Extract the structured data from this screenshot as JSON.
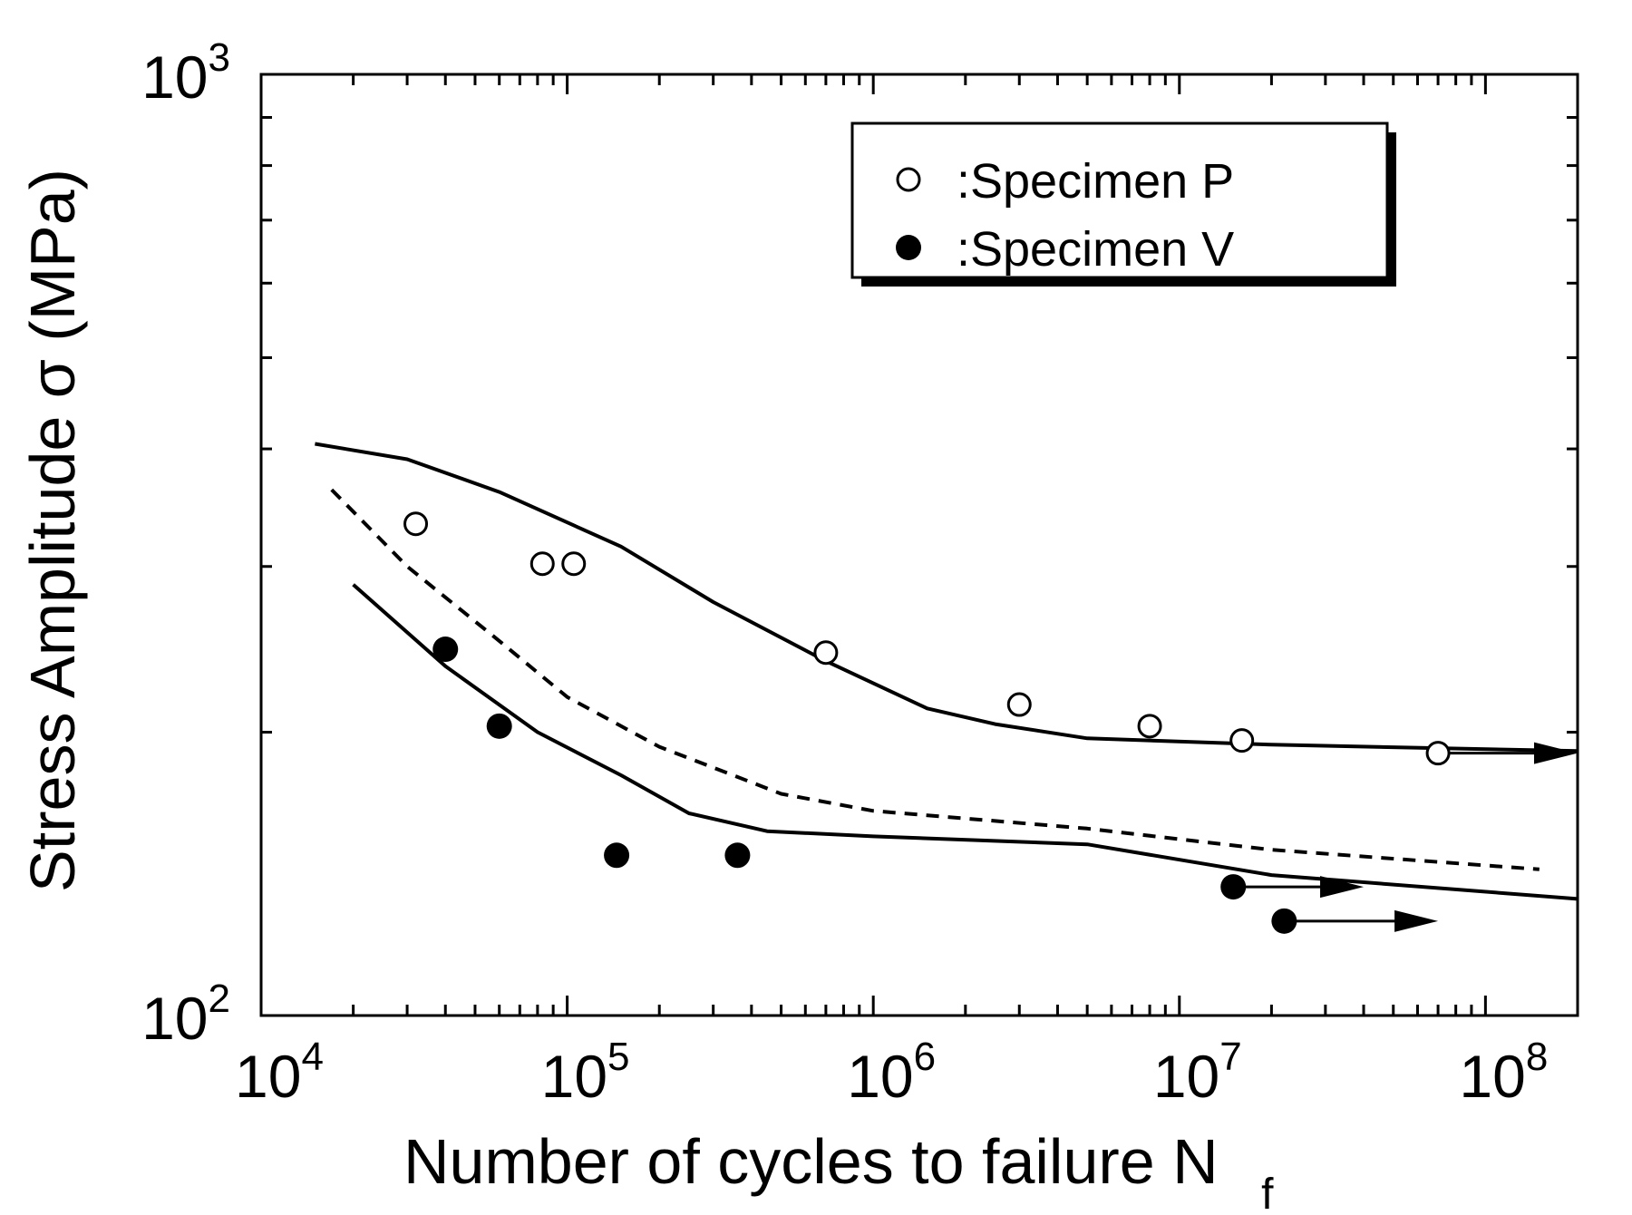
{
  "chart_data": {
    "type": "scatter",
    "title": "",
    "xlabel": "Number of cycles to failure N",
    "xlabel_subscript": "f",
    "ylabel": "Stress Amplitude σ (MPa)",
    "xscale": "log",
    "yscale": "log",
    "xlim": [
      10000,
      200000000
    ],
    "ylim": [
      100,
      1000
    ],
    "x_ticks": [
      {
        "base": "10",
        "exp": "4",
        "value": 10000
      },
      {
        "base": "10",
        "exp": "5",
        "value": 100000
      },
      {
        "base": "10",
        "exp": "6",
        "value": 1000000
      },
      {
        "base": "10",
        "exp": "7",
        "value": 10000000
      },
      {
        "base": "10",
        "exp": "8",
        "value": 100000000
      }
    ],
    "y_ticks": [
      {
        "base": "10",
        "exp": "2",
        "value": 100
      },
      {
        "base": "10",
        "exp": "3",
        "value": 1000
      }
    ],
    "legend": {
      "position": "top-right",
      "entries": [
        {
          "label": ":Specimen P",
          "marker": "open-circle"
        },
        {
          "label": ":Specimen V",
          "marker": "filled-circle"
        }
      ]
    },
    "series": [
      {
        "name": "Specimen P",
        "marker": "open-circle",
        "points": [
          {
            "x": 32000,
            "y": 333
          },
          {
            "x": 83000,
            "y": 302
          },
          {
            "x": 105000,
            "y": 302
          },
          {
            "x": 700000,
            "y": 243
          },
          {
            "x": 3000000,
            "y": 214
          },
          {
            "x": 8000000,
            "y": 203
          },
          {
            "x": 16000000,
            "y": 196
          },
          {
            "x": 70000000,
            "y": 190,
            "runout": true
          }
        ]
      },
      {
        "name": "Specimen V",
        "marker": "filled-circle",
        "points": [
          {
            "x": 40000,
            "y": 245
          },
          {
            "x": 60000,
            "y": 203
          },
          {
            "x": 145000,
            "y": 148
          },
          {
            "x": 360000,
            "y": 148
          },
          {
            "x": 15000000,
            "y": 137,
            "runout": true
          },
          {
            "x": 22000000,
            "y": 126,
            "runout": true
          }
        ]
      }
    ],
    "curves": [
      {
        "name": "fit-specimen-P",
        "style": "solid",
        "points": [
          [
            15000,
            405
          ],
          [
            30000,
            390
          ],
          [
            60000,
            360
          ],
          [
            150000,
            315
          ],
          [
            300000,
            275
          ],
          [
            700000,
            238
          ],
          [
            1500000,
            212
          ],
          [
            2500000,
            204
          ],
          [
            5000000,
            197
          ],
          [
            20000000,
            194
          ],
          [
            200000000,
            191
          ]
        ]
      },
      {
        "name": "fit-specimen-V",
        "style": "solid",
        "points": [
          [
            20000,
            287
          ],
          [
            40000,
            235
          ],
          [
            80000,
            200
          ],
          [
            150000,
            180
          ],
          [
            250000,
            164
          ],
          [
            450000,
            157
          ],
          [
            1000000,
            155
          ],
          [
            5000000,
            152
          ],
          [
            20000000,
            141
          ],
          [
            200000000,
            133
          ]
        ]
      },
      {
        "name": "fit-dashed",
        "style": "dashed",
        "points": [
          [
            17000,
            362
          ],
          [
            30000,
            300
          ],
          [
            60000,
            250
          ],
          [
            100000,
            218
          ],
          [
            200000,
            193
          ],
          [
            500000,
            172
          ],
          [
            1000000,
            165
          ],
          [
            5000000,
            158
          ],
          [
            20000000,
            150
          ],
          [
            150000000,
            143
          ]
        ]
      }
    ],
    "runout_arrows": [
      {
        "x_from": 70000000,
        "x_to": 200000000,
        "y": 190
      },
      {
        "x_from": 15000000,
        "x_to": 40000000,
        "y": 137
      },
      {
        "x_from": 22000000,
        "x_to": 70000000,
        "y": 126
      }
    ]
  }
}
